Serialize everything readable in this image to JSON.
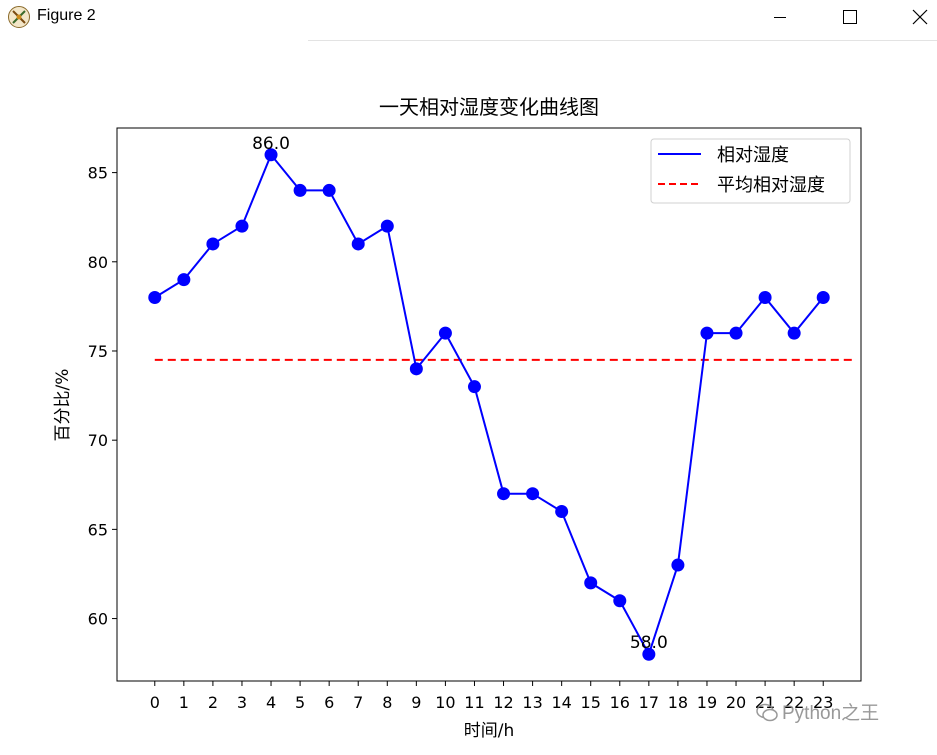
{
  "window": {
    "title": "Figure 2"
  },
  "watermark": {
    "text": "Python之王"
  },
  "chart_data": {
    "type": "line",
    "title": "一天相对湿度变化曲线图",
    "xlabel": "时间/h",
    "ylabel": "百分比/%",
    "categories": [
      "0",
      "1",
      "2",
      "3",
      "4",
      "5",
      "6",
      "7",
      "8",
      "9",
      "10",
      "11",
      "12",
      "13",
      "14",
      "15",
      "16",
      "17",
      "18",
      "19",
      "20",
      "21",
      "22",
      "23"
    ],
    "x": [
      0,
      1,
      2,
      3,
      4,
      5,
      6,
      7,
      8,
      9,
      10,
      11,
      12,
      13,
      14,
      15,
      16,
      17,
      18,
      19,
      20,
      21,
      22,
      23
    ],
    "series": [
      {
        "name": "相对湿度",
        "color": "#0000ff",
        "marker": "circle",
        "style": "solid",
        "values": [
          78,
          79,
          81,
          82,
          86,
          84,
          84,
          81,
          82,
          74,
          76,
          73,
          67,
          67,
          66,
          62,
          61,
          58,
          63,
          76,
          76,
          78,
          76,
          78
        ]
      },
      {
        "name": "平均相对湿度",
        "color": "#ff0000",
        "style": "dashed",
        "value": 74.5
      }
    ],
    "annotations": [
      {
        "x": 4,
        "y": 86,
        "text": "86.0"
      },
      {
        "x": 17,
        "y": 58,
        "text": "58.0"
      }
    ],
    "yticks": [
      60,
      65,
      70,
      75,
      80,
      85
    ],
    "xlim": [
      -1.3,
      24.3
    ],
    "ylim": [
      56.5,
      87.5
    ],
    "grid": false,
    "legend": "upper right"
  }
}
